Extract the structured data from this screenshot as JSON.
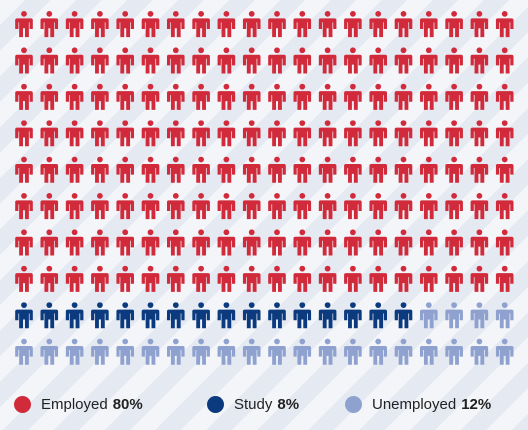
{
  "chart_data": {
    "type": "pictogram",
    "total_icons": 200,
    "columns": 20,
    "rows": 10,
    "series": [
      {
        "name": "Employed",
        "label": "Employed",
        "percent_label": "80%",
        "value": 80,
        "icon_count": 160,
        "color": "#d12b3b"
      },
      {
        "name": "Study",
        "label": "Study",
        "percent_label": "8%",
        "value": 8,
        "icon_count": 16,
        "color": "#0b3a7e"
      },
      {
        "name": "Unemployed",
        "label": "Unemployed",
        "percent_label": "12%",
        "value": 12,
        "icon_count": 24,
        "color": "#8fa2cf"
      }
    ],
    "legend_position": "bottom",
    "icon": "person-icon"
  }
}
